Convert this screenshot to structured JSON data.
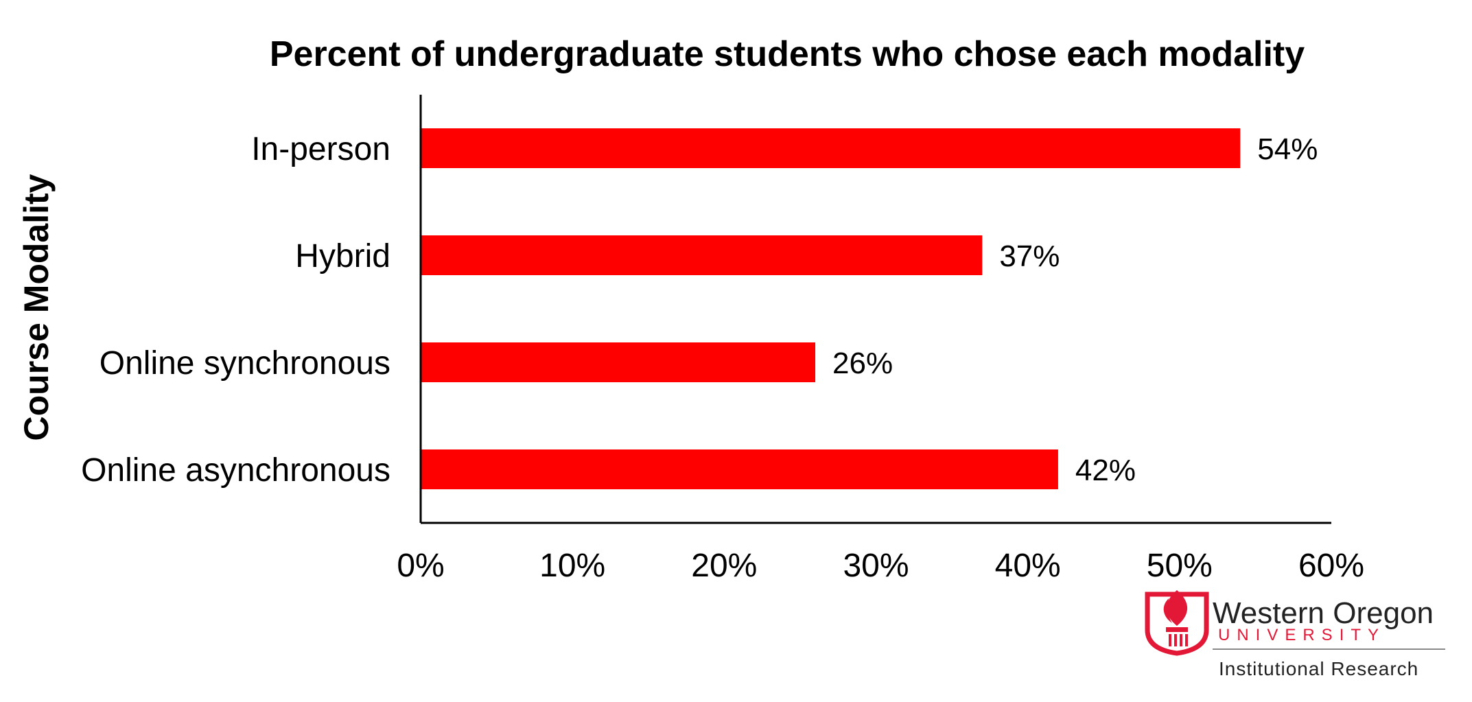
{
  "chart_data": {
    "type": "bar",
    "orientation": "horizontal",
    "title": "Percent of undergraduate students who chose each modality",
    "ylabel": "Course Modality",
    "xlabel": "",
    "categories": [
      "In-person",
      "Hybrid",
      "Online synchronous",
      "Online asynchronous"
    ],
    "values": [
      54,
      37,
      26,
      42
    ],
    "value_labels": [
      "54%",
      "37%",
      "26%",
      "42%"
    ],
    "xlim": [
      0,
      60
    ],
    "xticks": [
      "0%",
      "10%",
      "20%",
      "30%",
      "40%",
      "50%",
      "60%"
    ],
    "grid": false,
    "legend": "none",
    "bar_color": "#ff0000"
  },
  "logo": {
    "name": "Western Oregon",
    "university": "UNIVERSITY",
    "department": "Institutional Research",
    "icon": "torch-shield-icon",
    "brand_color": "#e31837"
  }
}
